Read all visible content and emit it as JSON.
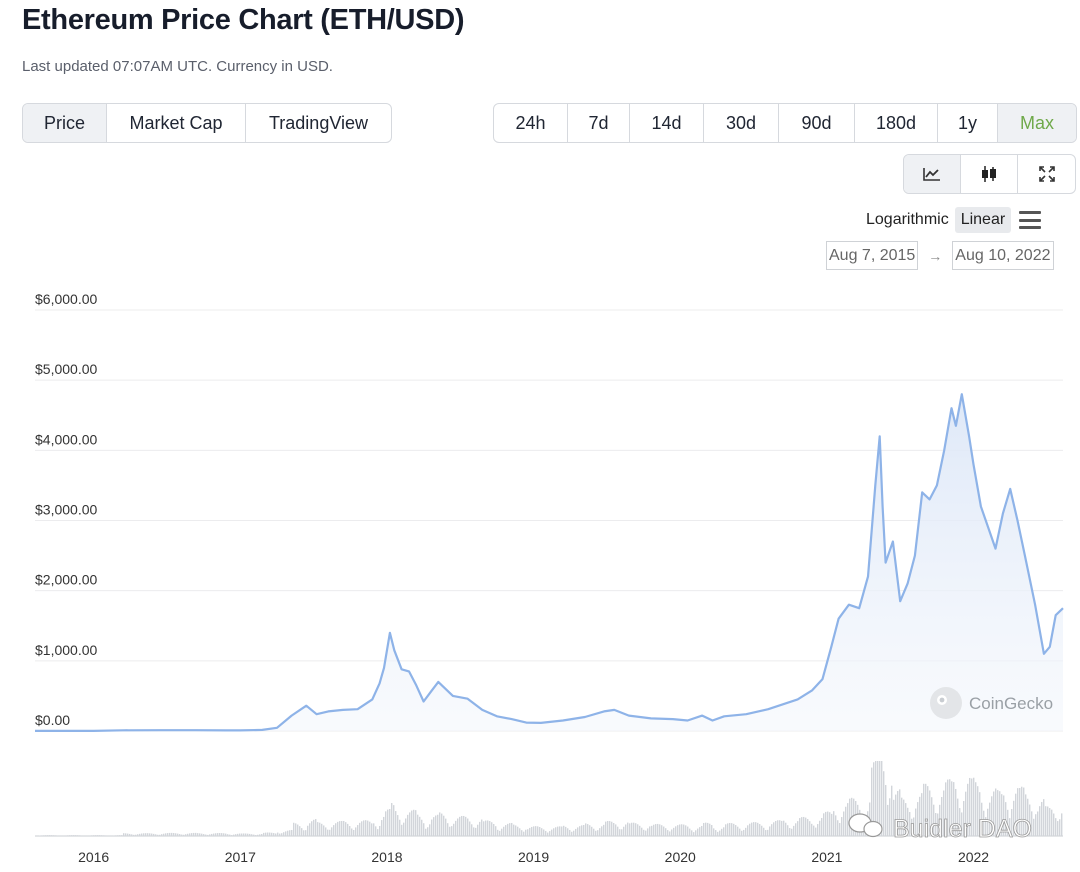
{
  "header": {
    "title": "Ethereum Price Chart (ETH/USD)",
    "subtitle": "Last updated 07:07AM UTC. Currency in USD."
  },
  "view_tabs": [
    {
      "label": "Price",
      "active": true
    },
    {
      "label": "Market Cap",
      "active": false
    },
    {
      "label": "TradingView",
      "active": false
    }
  ],
  "range_tabs": [
    {
      "label": "24h",
      "active": false
    },
    {
      "label": "7d",
      "active": false
    },
    {
      "label": "14d",
      "active": false
    },
    {
      "label": "30d",
      "active": false
    },
    {
      "label": "90d",
      "active": false
    },
    {
      "label": "180d",
      "active": false
    },
    {
      "label": "1y",
      "active": false
    },
    {
      "label": "Max",
      "active": true
    }
  ],
  "chart_mode_icons": [
    "line-chart-icon",
    "candlestick-icon",
    "expand-icon"
  ],
  "scale": {
    "logarithmic": "Logarithmic",
    "linear": "Linear",
    "active": "Linear",
    "menu_icon": "hamburger-menu-icon"
  },
  "date_range": {
    "from": "Aug 7, 2015",
    "arrow": "→",
    "to": "Aug 10, 2022"
  },
  "watermarks": {
    "coingecko": "CoinGecko",
    "builder": "Buidler DAO"
  },
  "colors": {
    "line": "#8eb3e8",
    "area_top": "#dbe6f7",
    "accent": "#6fa94a",
    "volume": "#cfd2d6"
  },
  "chart_data": {
    "type": "area",
    "title": "",
    "ylabel": "",
    "xlabel": "",
    "ylim": [
      0,
      6000
    ],
    "y_ticks": [
      "$0.00",
      "$1,000.00",
      "$2,000.00",
      "$3,000.00",
      "$4,000.00",
      "$5,000.00",
      "$6,000.00"
    ],
    "y_tick_values": [
      0,
      1000,
      2000,
      3000,
      4000,
      5000,
      6000
    ],
    "x_ticks": [
      "2016",
      "2017",
      "2018",
      "2019",
      "2020",
      "2021",
      "2022"
    ],
    "x_tick_values": [
      2016.0,
      2017.0,
      2018.0,
      2019.0,
      2020.0,
      2021.0,
      2022.0
    ],
    "xlim": [
      2015.6,
      2022.61
    ],
    "grid": true,
    "series": [
      {
        "x": [
          2015.6,
          2015.8,
          2016.0,
          2016.2,
          2016.45,
          2016.7,
          2016.9,
          2017.0,
          2017.15,
          2017.25,
          2017.35,
          2017.45,
          2017.52,
          2017.6,
          2017.7,
          2017.8,
          2017.9,
          2017.95,
          2017.98,
          2018.02,
          2018.05,
          2018.1,
          2018.15,
          2018.2,
          2018.25,
          2018.3,
          2018.35,
          2018.4,
          2018.45,
          2018.55,
          2018.65,
          2018.75,
          2018.85,
          2018.95,
          2019.05,
          2019.2,
          2019.35,
          2019.48,
          2019.55,
          2019.65,
          2019.8,
          2019.95,
          2020.05,
          2020.15,
          2020.22,
          2020.3,
          2020.45,
          2020.6,
          2020.7,
          2020.8,
          2020.9,
          2020.97,
          2021.03,
          2021.08,
          2021.15,
          2021.22,
          2021.28,
          2021.33,
          2021.36,
          2021.38,
          2021.4,
          2021.45,
          2021.5,
          2021.55,
          2021.6,
          2021.65,
          2021.7,
          2021.75,
          2021.8,
          2021.85,
          2021.88,
          2021.92,
          2021.97,
          2022.0,
          2022.05,
          2022.1,
          2022.15,
          2022.2,
          2022.25,
          2022.3,
          2022.35,
          2022.42,
          2022.48,
          2022.52,
          2022.56,
          2022.61
        ],
        "y": [
          1,
          1,
          1,
          10,
          12,
          11,
          9,
          8,
          15,
          45,
          220,
          360,
          240,
          280,
          300,
          310,
          450,
          680,
          900,
          1400,
          1150,
          880,
          850,
          650,
          420,
          560,
          700,
          600,
          500,
          460,
          300,
          210,
          170,
          120,
          115,
          150,
          200,
          280,
          300,
          220,
          180,
          170,
          150,
          220,
          150,
          210,
          240,
          310,
          380,
          450,
          580,
          740,
          1200,
          1600,
          1800,
          1750,
          2200,
          3500,
          4200,
          3200,
          2400,
          2700,
          1850,
          2100,
          2500,
          3400,
          3300,
          3500,
          4000,
          4600,
          4350,
          4800,
          4200,
          3800,
          3200,
          2900,
          2600,
          3100,
          3450,
          3000,
          2500,
          1800,
          1100,
          1200,
          1650,
          1750
        ]
      }
    ]
  }
}
